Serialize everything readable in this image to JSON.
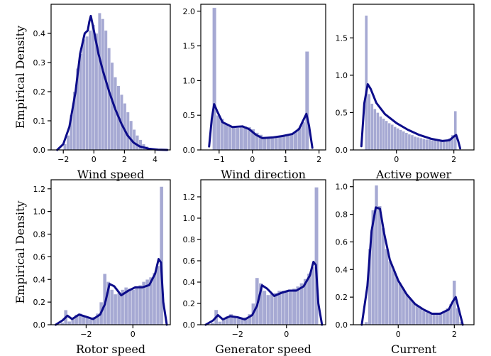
{
  "figure": {
    "ylabel": "Empirical Density",
    "hist_color": "#6b6fb5",
    "hist_edge": "#3f4394",
    "kde_color": "#0d0d8a"
  },
  "chart_data": [
    {
      "type": "bar",
      "xlabel": "Wind speed",
      "ylabel": "Empirical Density",
      "xlim": [
        -2.8,
        5.0
      ],
      "ylim": [
        0,
        0.5
      ],
      "xticks": [
        -2,
        0,
        2,
        4
      ],
      "yticks": [
        0.0,
        0.1,
        0.2,
        0.3,
        0.4
      ],
      "bin_edges_range": [
        -2.2,
        4.8
      ],
      "bar_heights": [
        0.0,
        0.02,
        0.05,
        0.12,
        0.2,
        0.28,
        0.33,
        0.38,
        0.39,
        0.41,
        0.43,
        0.4,
        0.47,
        0.45,
        0.41,
        0.35,
        0.3,
        0.25,
        0.22,
        0.19,
        0.16,
        0.13,
        0.1,
        0.07,
        0.05,
        0.035,
        0.02,
        0.012,
        0.008,
        0.005,
        0.003,
        0.002,
        0.001,
        0.0
      ],
      "kde_x": [
        -2.4,
        -2.0,
        -1.6,
        -1.2,
        -0.9,
        -0.6,
        -0.4,
        -0.3,
        -0.2,
        0.0,
        0.3,
        0.6,
        1.0,
        1.4,
        1.8,
        2.2,
        2.6,
        3.0,
        3.6,
        4.2,
        4.8
      ],
      "kde_y": [
        0.0,
        0.02,
        0.08,
        0.2,
        0.33,
        0.4,
        0.41,
        0.44,
        0.46,
        0.41,
        0.33,
        0.27,
        0.2,
        0.14,
        0.09,
        0.05,
        0.025,
        0.012,
        0.004,
        0.001,
        0.0
      ]
    },
    {
      "type": "bar",
      "xlabel": "Wind direction",
      "ylabel": "",
      "xlim": [
        -1.55,
        2.2
      ],
      "ylim": [
        0,
        2.1
      ],
      "xticks": [
        -1,
        0,
        1,
        2
      ],
      "yticks": [
        0.0,
        0.5,
        1.0,
        1.5,
        2.0
      ],
      "bin_edges_range": [
        -1.2,
        1.7
      ],
      "bar_heights": [
        2.05,
        0.5,
        0.45,
        0.38,
        0.35,
        0.33,
        0.32,
        0.33,
        0.34,
        0.33,
        0.3,
        0.25,
        0.22,
        0.19,
        0.17,
        0.17,
        0.18,
        0.2,
        0.21,
        0.22,
        0.24,
        0.27,
        0.32,
        0.4,
        1.42
      ],
      "kde_x": [
        -1.3,
        -1.22,
        -1.15,
        -1.05,
        -0.9,
        -0.6,
        -0.3,
        -0.1,
        0.1,
        0.3,
        0.6,
        0.9,
        1.2,
        1.4,
        1.55,
        1.62,
        1.7,
        1.8
      ],
      "kde_y": [
        0.05,
        0.45,
        0.66,
        0.55,
        0.4,
        0.33,
        0.34,
        0.3,
        0.22,
        0.17,
        0.18,
        0.2,
        0.23,
        0.3,
        0.45,
        0.52,
        0.35,
        0.03
      ]
    },
    {
      "type": "bar",
      "xlabel": "Active power",
      "ylabel": "",
      "xlim": [
        -1.5,
        2.7
      ],
      "ylim": [
        0,
        1.95
      ],
      "xticks": [
        0,
        2
      ],
      "yticks": [
        0.0,
        0.5,
        1.0,
        1.5
      ],
      "bin_edges_range": [
        -1.1,
        2.1
      ],
      "bar_heights": [
        1.8,
        0.75,
        0.62,
        0.55,
        0.5,
        0.45,
        0.42,
        0.39,
        0.36,
        0.34,
        0.31,
        0.29,
        0.27,
        0.25,
        0.23,
        0.21,
        0.2,
        0.18,
        0.17,
        0.16,
        0.15,
        0.14,
        0.14,
        0.13,
        0.13,
        0.12,
        0.12,
        0.13,
        0.14,
        0.16,
        0.2,
        0.52
      ],
      "kde_x": [
        -1.22,
        -1.12,
        -1.0,
        -0.9,
        -0.7,
        -0.4,
        0.0,
        0.4,
        0.8,
        1.2,
        1.6,
        1.85,
        2.0,
        2.08,
        2.15,
        2.22
      ],
      "kde_y": [
        0.05,
        0.62,
        0.88,
        0.82,
        0.63,
        0.48,
        0.36,
        0.27,
        0.2,
        0.15,
        0.12,
        0.13,
        0.18,
        0.2,
        0.12,
        0.02
      ]
    },
    {
      "type": "bar",
      "xlabel": "Rotor speed",
      "ylabel": "Empirical Density",
      "xlim": [
        -3.5,
        1.6
      ],
      "ylim": [
        0,
        1.28
      ],
      "xticks": [
        -2,
        0
      ],
      "yticks": [
        0.0,
        0.2,
        0.4,
        0.6,
        0.8,
        1.0,
        1.2
      ],
      "bin_edges_range": [
        -3.1,
        1.3
      ],
      "bar_heights": [
        0.02,
        0.13,
        0.03,
        0.06,
        0.09,
        0.1,
        0.08,
        0.06,
        0.05,
        0.07,
        0.1,
        0.2,
        0.45,
        0.38,
        0.31,
        0.27,
        0.28,
        0.31,
        0.33,
        0.32,
        0.31,
        0.33,
        0.35,
        0.38,
        0.4,
        0.42,
        0.46,
        0.52,
        1.22
      ],
      "kde_x": [
        -3.3,
        -3.0,
        -2.8,
        -2.6,
        -2.3,
        -2.0,
        -1.7,
        -1.4,
        -1.2,
        -1.0,
        -0.8,
        -0.5,
        -0.2,
        0.1,
        0.4,
        0.7,
        0.95,
        1.1,
        1.2,
        1.3,
        1.45
      ],
      "kde_y": [
        0.0,
        0.04,
        0.08,
        0.05,
        0.09,
        0.07,
        0.05,
        0.09,
        0.18,
        0.36,
        0.34,
        0.26,
        0.3,
        0.33,
        0.33,
        0.35,
        0.45,
        0.58,
        0.55,
        0.2,
        0.0
      ]
    },
    {
      "type": "bar",
      "xlabel": "Generator speed",
      "ylabel": "",
      "xlim": [
        -3.5,
        1.6
      ],
      "ylim": [
        0,
        1.36
      ],
      "xticks": [
        -2,
        0
      ],
      "yticks": [
        0.0,
        0.2,
        0.4,
        0.6,
        0.8,
        1.0,
        1.2
      ],
      "bin_edges_range": [
        -3.1,
        1.3
      ],
      "bar_heights": [
        0.02,
        0.14,
        0.03,
        0.05,
        0.08,
        0.1,
        0.08,
        0.06,
        0.05,
        0.07,
        0.1,
        0.2,
        0.44,
        0.39,
        0.32,
        0.28,
        0.29,
        0.3,
        0.32,
        0.32,
        0.31,
        0.32,
        0.34,
        0.36,
        0.39,
        0.43,
        0.48,
        0.54,
        1.29
      ],
      "kde_x": [
        -3.3,
        -3.0,
        -2.8,
        -2.6,
        -2.3,
        -2.0,
        -1.7,
        -1.4,
        -1.2,
        -1.0,
        -0.8,
        -0.5,
        -0.2,
        0.1,
        0.4,
        0.7,
        0.95,
        1.1,
        1.2,
        1.3,
        1.45
      ],
      "kde_y": [
        0.0,
        0.04,
        0.09,
        0.05,
        0.08,
        0.07,
        0.05,
        0.09,
        0.18,
        0.37,
        0.34,
        0.27,
        0.3,
        0.32,
        0.32,
        0.36,
        0.46,
        0.59,
        0.56,
        0.2,
        0.0
      ]
    },
    {
      "type": "bar",
      "xlabel": "Current",
      "ylabel": "",
      "xlim": [
        -1.6,
        2.7
      ],
      "ylim": [
        0,
        1.05
      ],
      "xticks": [
        0,
        2
      ],
      "yticks": [
        0.0,
        0.2,
        0.4,
        0.6,
        0.8,
        1.0
      ],
      "bin_edges_range": [
        -1.2,
        2.3
      ],
      "bar_heights": [
        0.02,
        0.55,
        0.83,
        1.01,
        0.86,
        0.7,
        0.55,
        0.46,
        0.4,
        0.35,
        0.3,
        0.26,
        0.22,
        0.19,
        0.16,
        0.14,
        0.12,
        0.1,
        0.09,
        0.08,
        0.08,
        0.08,
        0.09,
        0.1,
        0.12,
        0.15,
        0.32,
        0.12,
        0.02
      ],
      "kde_x": [
        -1.3,
        -1.1,
        -0.95,
        -0.8,
        -0.65,
        -0.5,
        -0.3,
        0.0,
        0.3,
        0.6,
        0.9,
        1.2,
        1.5,
        1.8,
        1.95,
        2.05,
        2.15,
        2.3
      ],
      "kde_y": [
        0.0,
        0.28,
        0.68,
        0.85,
        0.84,
        0.66,
        0.47,
        0.32,
        0.22,
        0.15,
        0.11,
        0.08,
        0.08,
        0.11,
        0.17,
        0.2,
        0.12,
        0.0
      ]
    }
  ]
}
